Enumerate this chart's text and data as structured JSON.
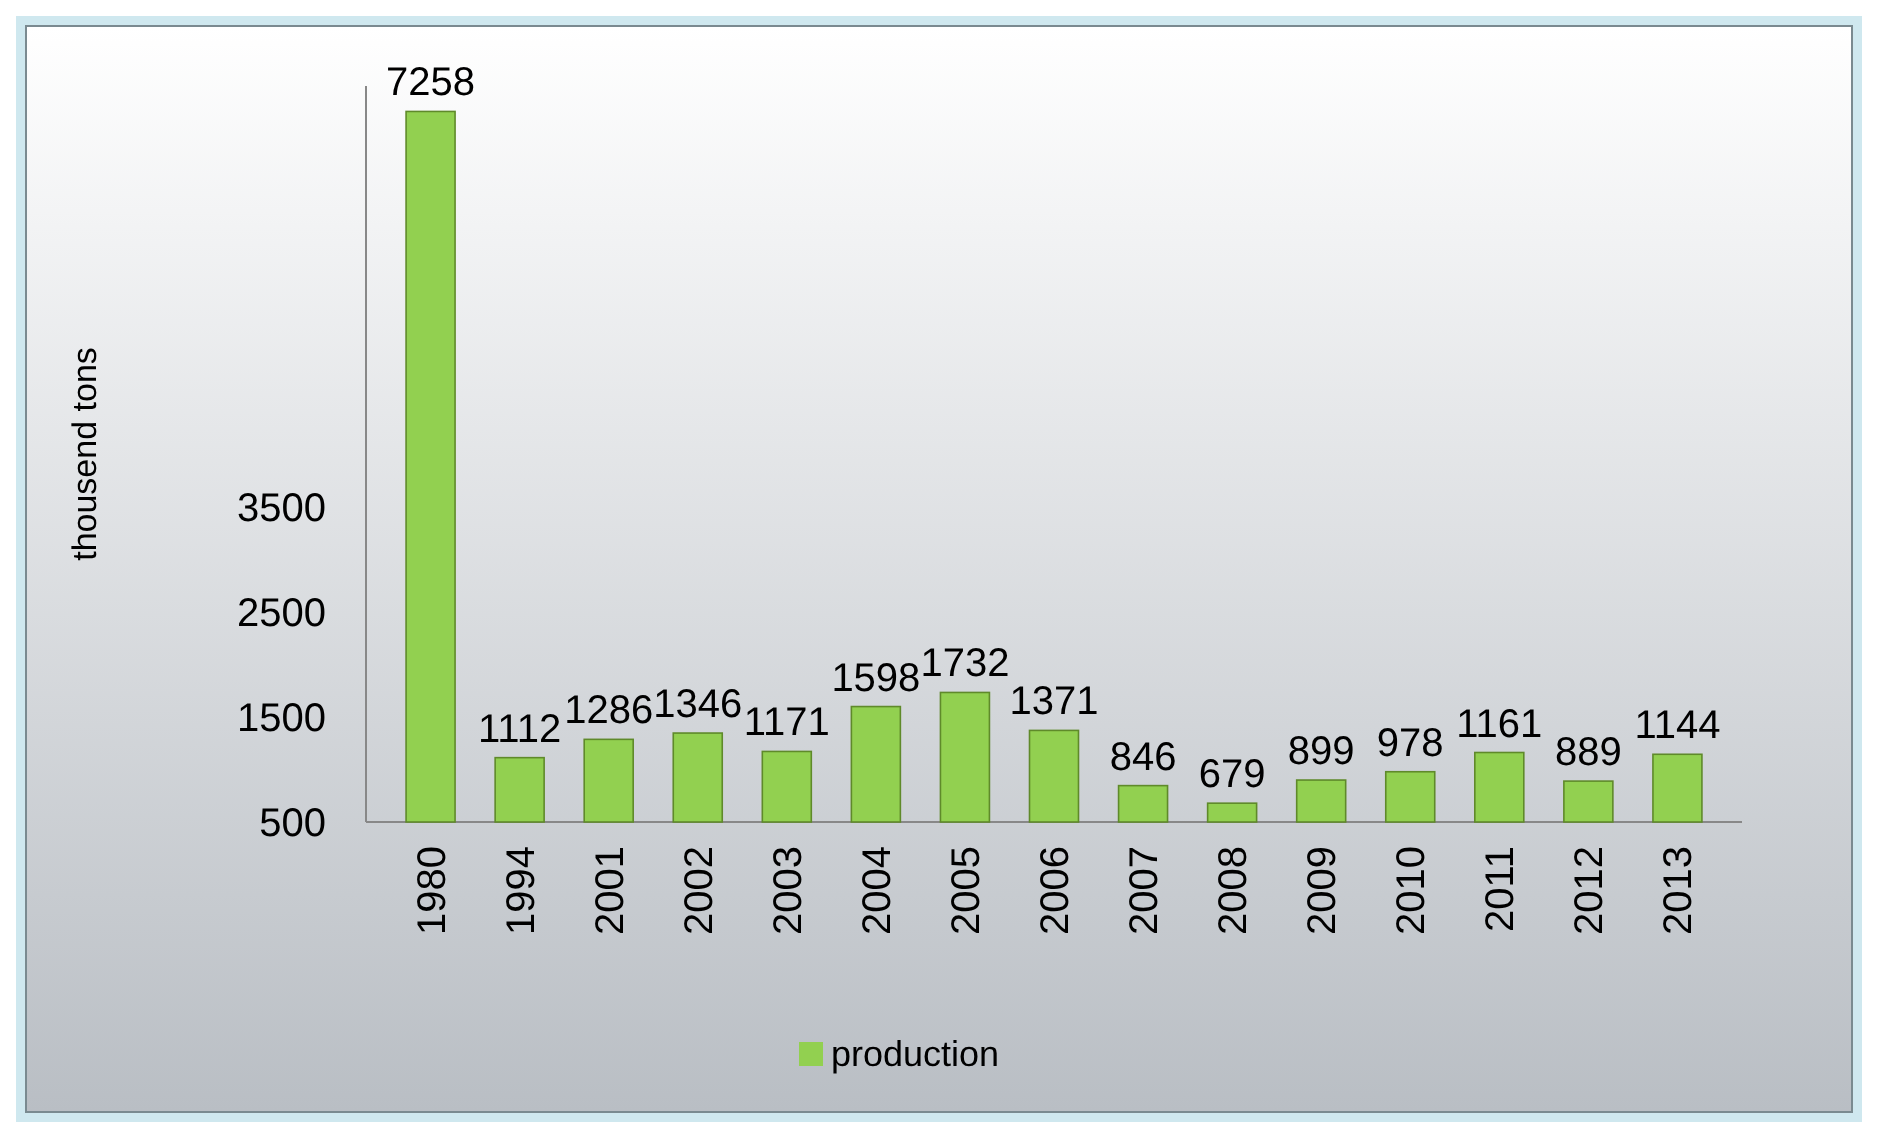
{
  "chart_data": {
    "type": "bar",
    "ylabel": "thousend tons",
    "categories": [
      "1980",
      "1994",
      "2001",
      "2002",
      "2003",
      "2004",
      "2005",
      "2006",
      "2007",
      "2008",
      "2009",
      "2010",
      "2011",
      "2012",
      "2013"
    ],
    "series": [
      {
        "name": "production",
        "color": "#92d050",
        "values": [
          7258,
          1112,
          1286,
          1346,
          1171,
          1598,
          1732,
          1371,
          846,
          679,
          899,
          978,
          1161,
          889,
          1144
        ]
      }
    ],
    "ylim": [
      500,
      7500
    ],
    "yticks": [
      500,
      1500,
      2500,
      3500
    ],
    "data_labels": true,
    "grid": false,
    "legend": "bottom"
  }
}
